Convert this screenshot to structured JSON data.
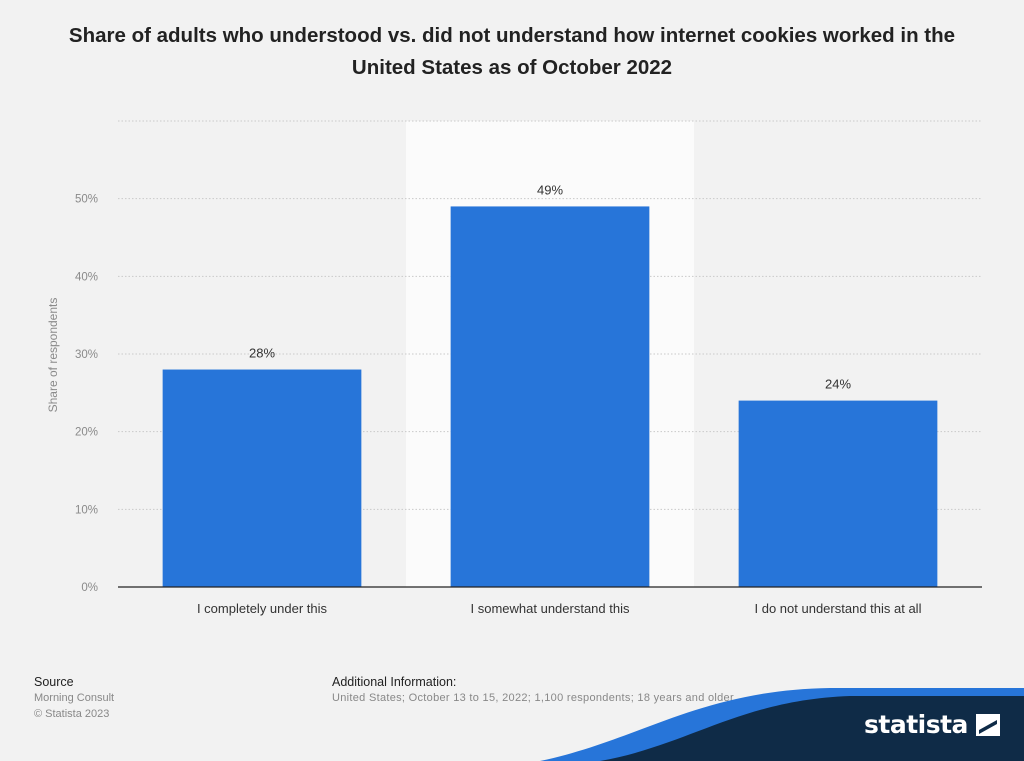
{
  "chart_data": {
    "type": "bar",
    "title": "Share of adults who understood vs. did not understand how internet cookies worked in the United States as of October 2022",
    "ylabel": "Share of respondents",
    "xlabel": "",
    "categories": [
      "I completely under this",
      "I somewhat understand this",
      "I do not understand this at all"
    ],
    "values": [
      28,
      49,
      24
    ],
    "value_labels": [
      "28%",
      "49%",
      "24%"
    ],
    "ylim": [
      0,
      60
    ],
    "yticks": [
      0,
      10,
      20,
      30,
      40,
      50,
      60
    ],
    "ytick_labels": [
      "0%",
      "10%",
      "20%",
      "30%",
      "40%",
      "50%",
      ""
    ],
    "grid": true,
    "highlighted_category_index": 1,
    "bar_color": "#2775d9"
  },
  "footer": {
    "source_label": "Source",
    "source_name": "Morning Consult",
    "copyright": "© Statista 2023",
    "additional_label": "Additional Information:",
    "additional_text": "United States; October 13 to 15, 2022; 1,100 respondents; 18 years and older"
  },
  "brand": {
    "name": "statista",
    "color": "#0f2b47",
    "accent": "#2775d9"
  }
}
